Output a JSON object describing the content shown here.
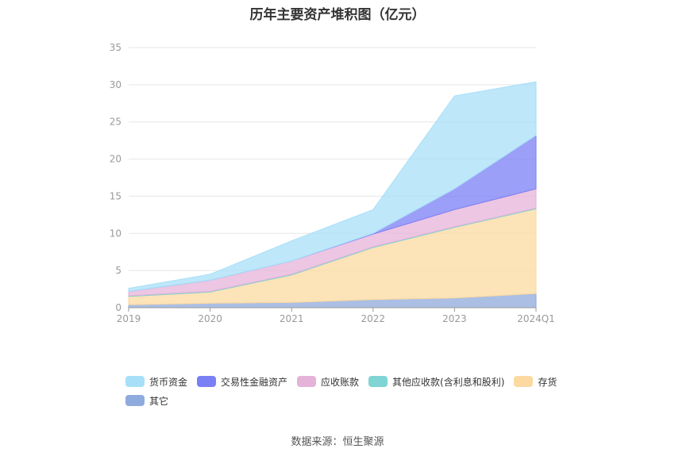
{
  "title": "历年主要资产堆积图（亿元）",
  "source": "数据来源：恒生聚源",
  "chart_data": {
    "type": "area",
    "stacked": true,
    "categories": [
      "2019",
      "2020",
      "2021",
      "2022",
      "2023",
      "2024Q1"
    ],
    "ylim": [
      0,
      35
    ],
    "yticks": [
      0,
      5,
      10,
      15,
      20,
      25,
      30,
      35
    ],
    "grid": true,
    "legend_position": "bottom",
    "series": [
      {
        "name": "其它",
        "color": "#8faadc",
        "values": [
          0.4,
          0.6,
          0.7,
          1.1,
          1.3,
          1.9
        ]
      },
      {
        "name": "存货",
        "color": "#fcd9a0",
        "values": [
          1.1,
          1.5,
          3.7,
          7.0,
          9.5,
          11.4
        ]
      },
      {
        "name": "其他应收款(含利息和股利)",
        "color": "#7fd4d4",
        "values": [
          0.1,
          0.1,
          0.1,
          0.1,
          0.1,
          0.1
        ]
      },
      {
        "name": "应收账款",
        "color": "#e6b3d8",
        "values": [
          0.6,
          1.5,
          1.8,
          1.7,
          2.3,
          2.6
        ]
      },
      {
        "name": "交易性金融资产",
        "color": "#7b7ff5",
        "values": [
          0.0,
          0.0,
          0.0,
          0.1,
          2.8,
          7.2
        ]
      },
      {
        "name": "货币资金",
        "color": "#a8dff8",
        "values": [
          0.4,
          0.8,
          2.7,
          3.2,
          12.5,
          7.2
        ]
      }
    ],
    "legend_order": [
      "货币资金",
      "交易性金融资产",
      "应收账款",
      "其他应收款(含利息和股利)",
      "存货",
      "其它"
    ]
  }
}
